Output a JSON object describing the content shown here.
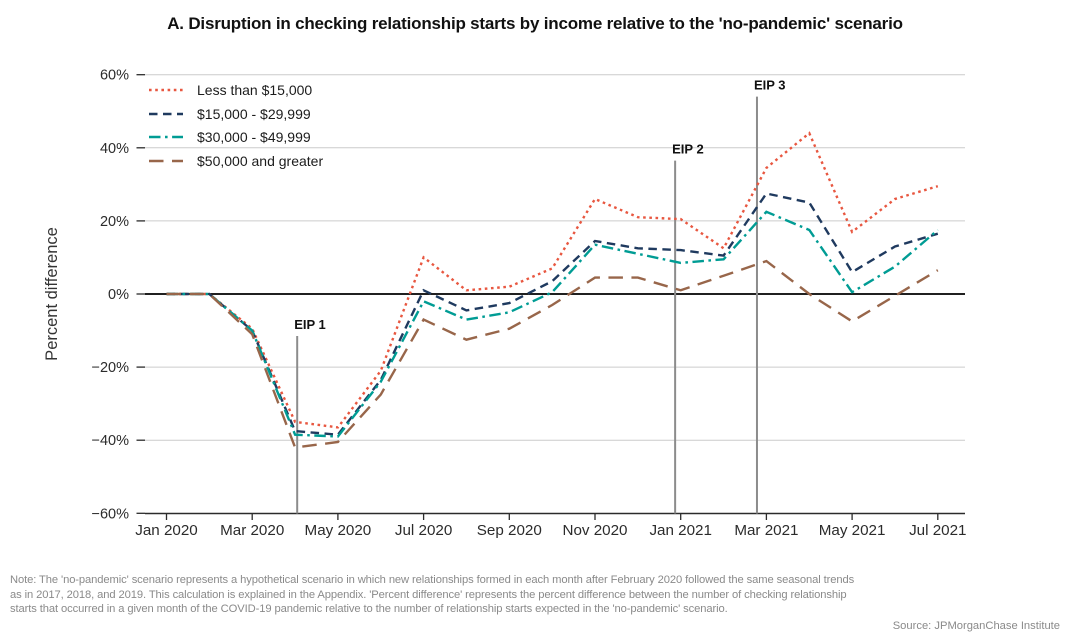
{
  "title": "A. Disruption in checking relationship starts by income relative to the 'no-pandemic' scenario",
  "note": "Note: The 'no-pandemic' scenario represents a hypothetical scenario in which new relationships formed in each month after February 2020 followed the same seasonal trends\nas in 2017, 2018, and 2019. This calculation is explained in the Appendix. 'Percent difference' represents the percent difference between the number of checking relationship\nstarts that occurred in a given month of the COVID-19 pandemic relative to the number of relationship starts expected in the 'no-pandemic' scenario.",
  "source": "Source: JPMorganChase Institute",
  "chart_data": {
    "type": "line",
    "title": "A. Disruption in checking relationship starts by income relative to the 'no-pandemic' scenario",
    "ylabel": "Percent difference",
    "xlabel": "",
    "ylim": [
      -60,
      60
    ],
    "ytick_step": 20,
    "ytick_suffix": "%",
    "grid": "horizontal",
    "legend_position": "top-left",
    "x": [
      "Jan 2020",
      "Feb 2020",
      "Mar 2020",
      "Apr 2020",
      "May 2020",
      "Jun 2020",
      "Jul 2020",
      "Aug 2020",
      "Sep 2020",
      "Oct 2020",
      "Nov 2020",
      "Dec 2020",
      "Jan 2021",
      "Feb 2021",
      "Mar 2021",
      "Apr 2021",
      "May 2021",
      "Jun 2021",
      "Jul 2021"
    ],
    "xticks_labeled": [
      "Jan 2020",
      "Mar 2020",
      "May 2020",
      "Jul 2020",
      "Sep 2020",
      "Nov 2020",
      "Jan 2021",
      "Mar 2021",
      "May 2021",
      "Jul 2021"
    ],
    "series": [
      {
        "name": "Less than $15,000",
        "color": "#E85740",
        "dash": "dotted",
        "values": [
          0,
          0,
          -9.5,
          -35,
          -36.5,
          -21,
          10,
          1,
          2,
          7,
          26,
          21,
          20.5,
          12.5,
          34.5,
          44,
          17,
          26,
          29.5
        ]
      },
      {
        "name": "$15,000 - $29,999",
        "color": "#1F3A5F",
        "dash": "dashed",
        "values": [
          0,
          0,
          -10,
          -37.5,
          -38.5,
          -23.5,
          1,
          -4.5,
          -2.5,
          3.5,
          14.5,
          12.5,
          12,
          10.5,
          27.5,
          25,
          6,
          13,
          16.5
        ]
      },
      {
        "name": "$30,000 - $49,999",
        "color": "#009C94",
        "dash": "dashdot",
        "values": [
          0,
          0,
          -10,
          -38.5,
          -39,
          -24,
          -2,
          -7,
          -5,
          0.5,
          13.5,
          11,
          8.5,
          9.5,
          22.5,
          17.5,
          0.5,
          7.5,
          17.5
        ]
      },
      {
        "name": "$50,000 and greater",
        "color": "#98664A",
        "dash": "longdash",
        "values": [
          0,
          0,
          -11,
          -42,
          -40.5,
          -27.5,
          -7,
          -12.5,
          -9.5,
          -3,
          4.5,
          4.5,
          1,
          5,
          9,
          0,
          -7.5,
          -0.5,
          6.5
        ]
      }
    ],
    "annotations": [
      {
        "label": "EIP 1",
        "x": "Apr 2020",
        "x_index": 3.05,
        "top_value": -11.5
      },
      {
        "label": "EIP 2",
        "x": "Jan 2021",
        "x_index": 11.87,
        "top_value": 36.5
      },
      {
        "label": "EIP 3",
        "x": "Mar 2021",
        "x_index": 13.78,
        "top_value": 54
      }
    ],
    "colors": {
      "grid": "#CCCCCC",
      "zero_line": "#000000",
      "axis": "#2B2B2B",
      "annotation_line": "#8C8C8C",
      "tick_text": "#2B2B2B",
      "note_text": "#8A8A8A"
    }
  }
}
